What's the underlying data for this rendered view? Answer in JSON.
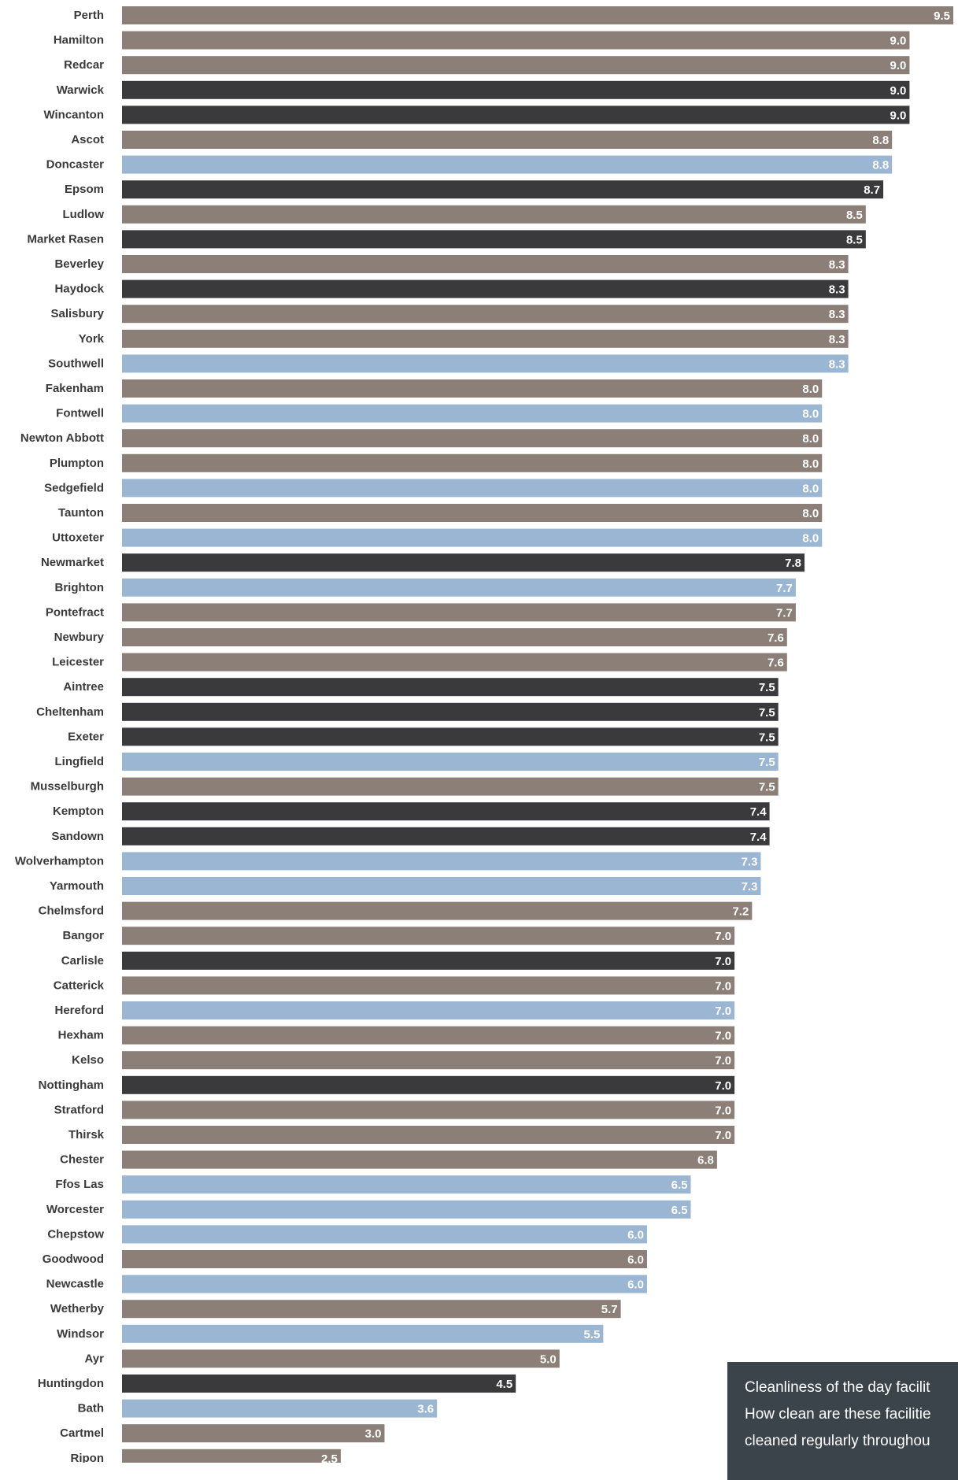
{
  "chart_data": {
    "type": "bar",
    "orientation": "horizontal",
    "categories": [
      "Perth",
      "Hamilton",
      "Redcar",
      "Warwick",
      "Wincanton",
      "Ascot",
      "Doncaster",
      "Epsom",
      "Ludlow",
      "Market Rasen",
      "Beverley",
      "Haydock",
      "Salisbury",
      "York",
      "Southwell",
      "Fakenham",
      "Fontwell",
      "Newton Abbott",
      "Plumpton",
      "Sedgefield",
      "Taunton",
      "Uttoxeter",
      "Newmarket",
      "Brighton",
      "Pontefract",
      "Newbury",
      "Leicester",
      "Aintree",
      "Cheltenham",
      "Exeter",
      "Lingfield",
      "Musselburgh",
      "Kempton",
      "Sandown",
      "Wolverhampton",
      "Yarmouth",
      "Chelmsford",
      "Bangor",
      "Carlisle",
      "Catterick",
      "Hereford",
      "Hexham",
      "Kelso",
      "Nottingham",
      "Stratford",
      "Thirsk",
      "Chester",
      "Ffos Las",
      "Worcester",
      "Chepstow",
      "Goodwood",
      "Newcastle",
      "Wetherby",
      "Windsor",
      "Ayr",
      "Huntingdon",
      "Bath",
      "Cartmel",
      "Ripon"
    ],
    "values": [
      9.5,
      9.0,
      9.0,
      9.0,
      9.0,
      8.8,
      8.8,
      8.7,
      8.5,
      8.5,
      8.3,
      8.3,
      8.3,
      8.3,
      8.3,
      8.0,
      8.0,
      8.0,
      8.0,
      8.0,
      8.0,
      8.0,
      7.8,
      7.7,
      7.7,
      7.6,
      7.6,
      7.5,
      7.5,
      7.5,
      7.5,
      7.5,
      7.4,
      7.4,
      7.3,
      7.3,
      7.2,
      7.0,
      7.0,
      7.0,
      7.0,
      7.0,
      7.0,
      7.0,
      7.0,
      7.0,
      6.8,
      6.5,
      6.5,
      6.0,
      6.0,
      6.0,
      5.7,
      5.5,
      5.0,
      4.5,
      3.6,
      3.0,
      2.5
    ],
    "value_labels": [
      "9.5",
      "9.0",
      "9.0",
      "9.0",
      "9.0",
      "8.8",
      "8.8",
      "8.7",
      "8.5",
      "8.5",
      "8.3",
      "8.3",
      "8.3",
      "8.3",
      "8.3",
      "8.0",
      "8.0",
      "8.0",
      "8.0",
      "8.0",
      "8.0",
      "8.0",
      "7.8",
      "7.7",
      "7.7",
      "7.6",
      "7.6",
      "7.5",
      "7.5",
      "7.5",
      "7.5",
      "7.5",
      "7.4",
      "7.4",
      "7.3",
      "7.3",
      "7.2",
      "7.0",
      "7.0",
      "7.0",
      "7.0",
      "7.0",
      "7.0",
      "7.0",
      "7.0",
      "7.0",
      "6.8",
      "6.5",
      "6.5",
      "6.0",
      "6.0",
      "6.0",
      "5.7",
      "5.5",
      "5.0",
      "4.5",
      "3.6",
      "3.0",
      "2.5"
    ],
    "groups": [
      "tan",
      "tan",
      "tan",
      "dark",
      "dark",
      "tan",
      "blue",
      "dark",
      "tan",
      "dark",
      "tan",
      "dark",
      "tan",
      "tan",
      "blue",
      "tan",
      "blue",
      "tan",
      "tan",
      "blue",
      "tan",
      "blue",
      "dark",
      "blue",
      "tan",
      "tan",
      "tan",
      "dark",
      "dark",
      "dark",
      "blue",
      "tan",
      "dark",
      "dark",
      "blue",
      "blue",
      "tan",
      "tan",
      "dark",
      "tan",
      "blue",
      "tan",
      "tan",
      "dark",
      "tan",
      "tan",
      "tan",
      "blue",
      "blue",
      "blue",
      "tan",
      "blue",
      "tan",
      "blue",
      "tan",
      "dark",
      "blue",
      "tan",
      "tan"
    ],
    "colors": {
      "tan": "#8b7f77",
      "dark": "#3a3a3c",
      "blue": "#9ab6d3"
    },
    "xlim": [
      0,
      9.5
    ],
    "grid": false,
    "title": "",
    "xlabel": "",
    "ylabel": ""
  },
  "info_box": {
    "line1": "Cleanliness of the day facilit",
    "line2": "How clean are these facilitie",
    "line3": "cleaned regularly throughou"
  }
}
